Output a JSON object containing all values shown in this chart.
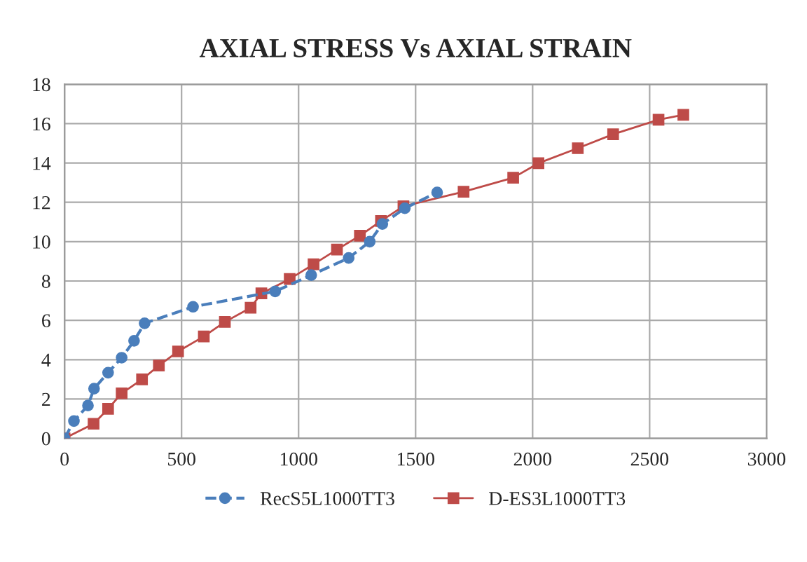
{
  "chart_data": {
    "type": "line",
    "title": "AXIAL STRESS Vs AXIAL STRAIN",
    "series": [
      {
        "name": "RecS5L1000TT3",
        "color": "#4a7ebb",
        "marker": "circle",
        "line_style": "dashed",
        "x": [
          0,
          40,
          100,
          126,
          186,
          244,
          297,
          342,
          549,
          900,
          1054,
          1214,
          1304,
          1358,
          1454,
          1592
        ],
        "values": [
          0,
          0.88,
          1.67,
          2.53,
          3.34,
          4.1,
          4.96,
          5.85,
          6.69,
          7.47,
          8.3,
          9.17,
          10.0,
          10.9,
          11.7,
          12.5
        ]
      },
      {
        "name": "D-ES3L1000TT3",
        "color": "#be4b48",
        "marker": "square",
        "line_style": "solid",
        "x": [
          0,
          124,
          186,
          244,
          331,
          403,
          485,
          595,
          685,
          795,
          841,
          962,
          1064,
          1164,
          1262,
          1352,
          1448,
          1705,
          1917,
          2025,
          2193,
          2344,
          2538,
          2644
        ],
        "values": [
          0,
          0.74,
          1.5,
          2.29,
          3.0,
          3.7,
          4.42,
          5.18,
          5.92,
          6.64,
          7.37,
          8.1,
          8.85,
          9.6,
          10.3,
          11.05,
          11.8,
          12.54,
          13.25,
          13.99,
          14.75,
          15.46,
          16.2,
          16.45
        ]
      }
    ],
    "xlim": [
      0,
      3000
    ],
    "xticks": [
      0,
      500,
      1000,
      1500,
      2000,
      2500,
      3000
    ],
    "ylim": [
      0,
      18
    ],
    "yticks": [
      0,
      2,
      4,
      6,
      8,
      10,
      12,
      14,
      16,
      18
    ],
    "grid": true,
    "legend": "bottom"
  }
}
